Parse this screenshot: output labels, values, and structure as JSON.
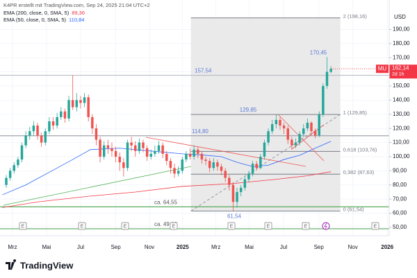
{
  "chart_data": {
    "type": "candlestick",
    "header": "K4PR erstellt mit TradingView.com, Sep 24, 2025 21:04 UTC+2",
    "symbol": "MU",
    "currency": "USD",
    "logo": "TradingView",
    "xlim": [
      5.4,
      104.9
    ],
    "ylim": [
      44.1,
      205.9
    ],
    "xticks": [
      {
        "value": 8.6,
        "label": "Mrz"
      },
      {
        "value": 17.3,
        "label": "Mai"
      },
      {
        "value": 26,
        "label": "Jul"
      },
      {
        "value": 35,
        "label": "Sep"
      },
      {
        "value": 43.6,
        "label": "Nov"
      },
      {
        "value": 52.1,
        "label": "2025"
      },
      {
        "value": 60.6,
        "label": "Mrz"
      },
      {
        "value": 69.1,
        "label": "Mai"
      },
      {
        "value": 77.9,
        "label": "Jul"
      },
      {
        "value": 86.9,
        "label": "Sep"
      },
      {
        "value": 95.6,
        "label": "Nov"
      },
      {
        "value": 104.4,
        "label": "2026"
      }
    ],
    "yticks": [
      {
        "value": 50,
        "label": "50,00"
      },
      {
        "value": 60,
        "label": "60,00"
      },
      {
        "value": 70,
        "label": "70,00"
      },
      {
        "value": 80,
        "label": "80,00"
      },
      {
        "value": 90,
        "label": "90,00"
      },
      {
        "value": 100,
        "label": "100,00"
      },
      {
        "value": 110,
        "label": "110,00"
      },
      {
        "value": 120,
        "label": "120,00"
      },
      {
        "value": 130,
        "label": "130,00"
      },
      {
        "value": 140,
        "label": "140,00"
      },
      {
        "value": 150,
        "label": "150,00"
      },
      {
        "value": 160,
        "label": "160,00"
      },
      {
        "value": 170,
        "label": "170,00"
      },
      {
        "value": 180,
        "label": "180,00"
      },
      {
        "value": 190,
        "label": "190,00"
      }
    ],
    "grid": true,
    "up_color": "#26a69a",
    "down_color": "#ef5350",
    "candles": {
      "x": [
        7,
        8,
        9,
        10,
        11,
        12,
        13,
        14,
        15,
        16,
        17,
        18,
        19,
        20,
        21,
        22,
        23,
        24,
        25,
        26,
        27,
        28,
        29,
        30,
        31,
        32,
        33,
        34,
        35,
        36,
        37,
        38,
        39,
        40,
        41,
        42,
        43,
        44,
        45,
        46,
        47,
        48,
        49,
        50,
        51,
        52,
        53,
        54,
        55,
        56,
        57,
        58,
        59,
        60,
        61,
        62,
        63,
        64,
        65,
        66,
        67,
        68,
        69,
        70,
        71,
        72,
        73,
        74,
        75,
        76,
        77,
        78,
        79,
        80,
        81,
        82,
        83,
        84,
        85,
        86,
        87,
        88,
        89,
        90
      ],
      "open": [
        80,
        85,
        90,
        94,
        98,
        108,
        115,
        118,
        122,
        115,
        110,
        118,
        125,
        122,
        128,
        132,
        127,
        140,
        135,
        140,
        138,
        142,
        128,
        120,
        112,
        100,
        108,
        106,
        104,
        100,
        96,
        92,
        110,
        108,
        104,
        110,
        106,
        100,
        102,
        104,
        108,
        102,
        97,
        92,
        88,
        90,
        98,
        102,
        100,
        105,
        102,
        98,
        97,
        92,
        96,
        93,
        90,
        85,
        80,
        68,
        75,
        78,
        84,
        88,
        95,
        92,
        100,
        110,
        118,
        123,
        126,
        122,
        120,
        112,
        108,
        110,
        116,
        120,
        124,
        118,
        115,
        130,
        150,
        160
      ],
      "high": [
        87,
        92,
        96,
        100,
        110,
        118,
        121,
        125,
        124,
        117,
        120,
        128,
        128,
        131,
        135,
        134,
        143,
        157.54,
        145,
        143,
        145,
        144,
        130,
        123,
        114,
        111,
        112,
        110,
        107,
        103,
        99,
        112,
        114,
        111,
        113,
        112,
        108,
        105,
        108,
        111,
        110,
        104,
        99,
        95,
        93,
        100,
        104,
        106,
        108,
        107,
        104,
        100,
        99,
        99,
        98,
        95,
        92,
        87,
        82,
        78,
        80,
        86,
        90,
        97,
        97,
        102,
        112,
        120,
        126,
        129.85,
        128,
        124,
        122,
        114,
        113,
        118,
        123,
        127,
        125,
        120,
        132,
        152,
        170.45,
        164
      ],
      "low": [
        78,
        83,
        88,
        92,
        96,
        106,
        112,
        115,
        112,
        107,
        108,
        116,
        119,
        120,
        126,
        124,
        125,
        133,
        132,
        134,
        135,
        125,
        116,
        108,
        96,
        98,
        102,
        100,
        96,
        90,
        86,
        90,
        104,
        100,
        102,
        103,
        97,
        98,
        100,
        102,
        99,
        94,
        88,
        85,
        86,
        88,
        96,
        98,
        98,
        99,
        95,
        94,
        89,
        90,
        90,
        87,
        82,
        76,
        61.54,
        64,
        72,
        76,
        82,
        86,
        90,
        91,
        98,
        108,
        116,
        120,
        119,
        116,
        109,
        105,
        106,
        108,
        114,
        118,
        115,
        113,
        114,
        128,
        148,
        159
      ],
      "close": [
        85,
        90,
        94,
        98,
        108,
        115,
        118,
        122,
        115,
        110,
        118,
        125,
        122,
        128,
        132,
        127,
        140,
        135,
        140,
        138,
        142,
        128,
        120,
        112,
        100,
        108,
        106,
        104,
        100,
        96,
        92,
        110,
        108,
        104,
        110,
        106,
        100,
        102,
        104,
        108,
        102,
        97,
        92,
        88,
        90,
        98,
        102,
        100,
        105,
        102,
        98,
        97,
        92,
        96,
        93,
        90,
        85,
        80,
        68,
        75,
        78,
        84,
        88,
        95,
        92,
        100,
        110,
        118,
        123,
        126,
        122,
        120,
        112,
        108,
        110,
        116,
        120,
        124,
        118,
        115,
        130,
        150,
        160,
        162.14
      ]
    },
    "series": [
      {
        "name": "EMA (200, close, 0, SMA, 5)",
        "last_label": "89,36",
        "color": "#f23645",
        "x": [
          6,
          15,
          28,
          40,
          52,
          65,
          76,
          84,
          90
        ],
        "values": [
          64,
          68,
          72,
          75,
          79,
          81,
          84,
          86.5,
          89.36
        ]
      },
      {
        "name": "EMA (50, close, 0, SMA, 5)",
        "last_label": "110,84",
        "color": "#2962ff",
        "x": [
          6,
          12,
          18,
          24,
          28.5,
          36,
          44,
          52,
          58,
          62,
          66,
          70,
          74,
          78,
          82,
          86,
          90
        ],
        "values": [
          73,
          80,
          89,
          98,
          105,
          106,
          104,
          102,
          101,
          100,
          96,
          93,
          94,
          98,
          101,
          106,
          110.84
        ]
      }
    ],
    "levels": [
      {
        "value": 157.54,
        "label": "157,54",
        "color": "#b2b5be"
      },
      {
        "value": 114.8,
        "label": "114,80",
        "color": "#9598a1"
      },
      {
        "value": 64.55,
        "label": "ca. 64,55",
        "color": "#43a047"
      },
      {
        "value": 49,
        "label": "ca. 49,00",
        "color": "#43a047"
      }
    ],
    "annotations": [
      {
        "value": 129.85,
        "label": "129,85"
      },
      {
        "value": 61.54,
        "label": "61,54"
      },
      {
        "value": 170.45,
        "label": "170,45"
      }
    ],
    "fib": {
      "x": [
        54.2,
        92.4
      ],
      "levels": [
        {
          "value": 198.16,
          "label": "2 (198,16)"
        },
        {
          "value": 129.85,
          "label": "1 (129,85)"
        },
        {
          "value": 103.76,
          "label": "0,618 (103,76)"
        },
        {
          "value": 87.63,
          "label": "0,382 (87,63)"
        },
        {
          "value": 61.54,
          "label": "0 (61,54)"
        }
      ]
    },
    "last_price": {
      "value": 162.14,
      "label": "162,14",
      "countdown": "2d 1h",
      "color": "#f23645"
    },
    "events": [
      "E",
      "E",
      "E",
      "E",
      "E",
      "E",
      "E",
      "E"
    ]
  }
}
